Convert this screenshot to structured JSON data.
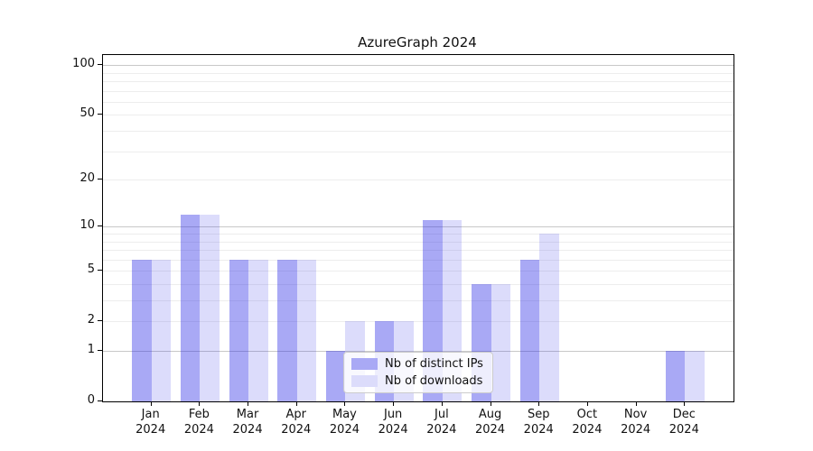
{
  "title": "AzureGraph 2024",
  "colors": {
    "bar_ips": "rgba(40,40,230,0.40)",
    "bar_downloads": "rgba(40,40,230,0.165)",
    "swatch_ips": "#a9a9f5",
    "swatch_downloads": "#dcdcfb",
    "grid_major": "#c8c8c8",
    "grid_minor": "#ededed",
    "spine": "#000000"
  },
  "legend": {
    "items": [
      {
        "label": "Nb of distinct IPs",
        "color_key": "swatch_ips"
      },
      {
        "label": "Nb of downloads",
        "color_key": "swatch_downloads"
      }
    ]
  },
  "chart_data": {
    "type": "bar",
    "title": "AzureGraph 2024",
    "scale": "log1p",
    "categories": [
      "Jan\n2024",
      "Feb\n2024",
      "Mar\n2024",
      "Apr\n2024",
      "May\n2024",
      "Jun\n2024",
      "Jul\n2024",
      "Aug\n2024",
      "Sep\n2024",
      "Oct\n2024",
      "Nov\n2024",
      "Dec\n2024"
    ],
    "series": [
      {
        "name": "Nb of distinct IPs",
        "values": [
          6,
          12,
          6,
          6,
          1,
          2,
          11,
          4,
          6,
          0,
          0,
          1
        ]
      },
      {
        "name": "Nb of downloads",
        "values": [
          6,
          12,
          6,
          6,
          2,
          2,
          11,
          4,
          9,
          0,
          0,
          1
        ]
      }
    ],
    "yticks": [
      0,
      1,
      2,
      5,
      10,
      20,
      50,
      100
    ],
    "grid_major_values": [
      1,
      10,
      100
    ],
    "grid_minor_values": [
      2,
      3,
      4,
      5,
      6,
      7,
      8,
      9,
      20,
      30,
      40,
      50,
      60,
      70,
      80,
      90
    ],
    "ylim": [
      0,
      115
    ],
    "xlabel": "",
    "ylabel": "",
    "legend_position": "lower center (inside plot)"
  }
}
